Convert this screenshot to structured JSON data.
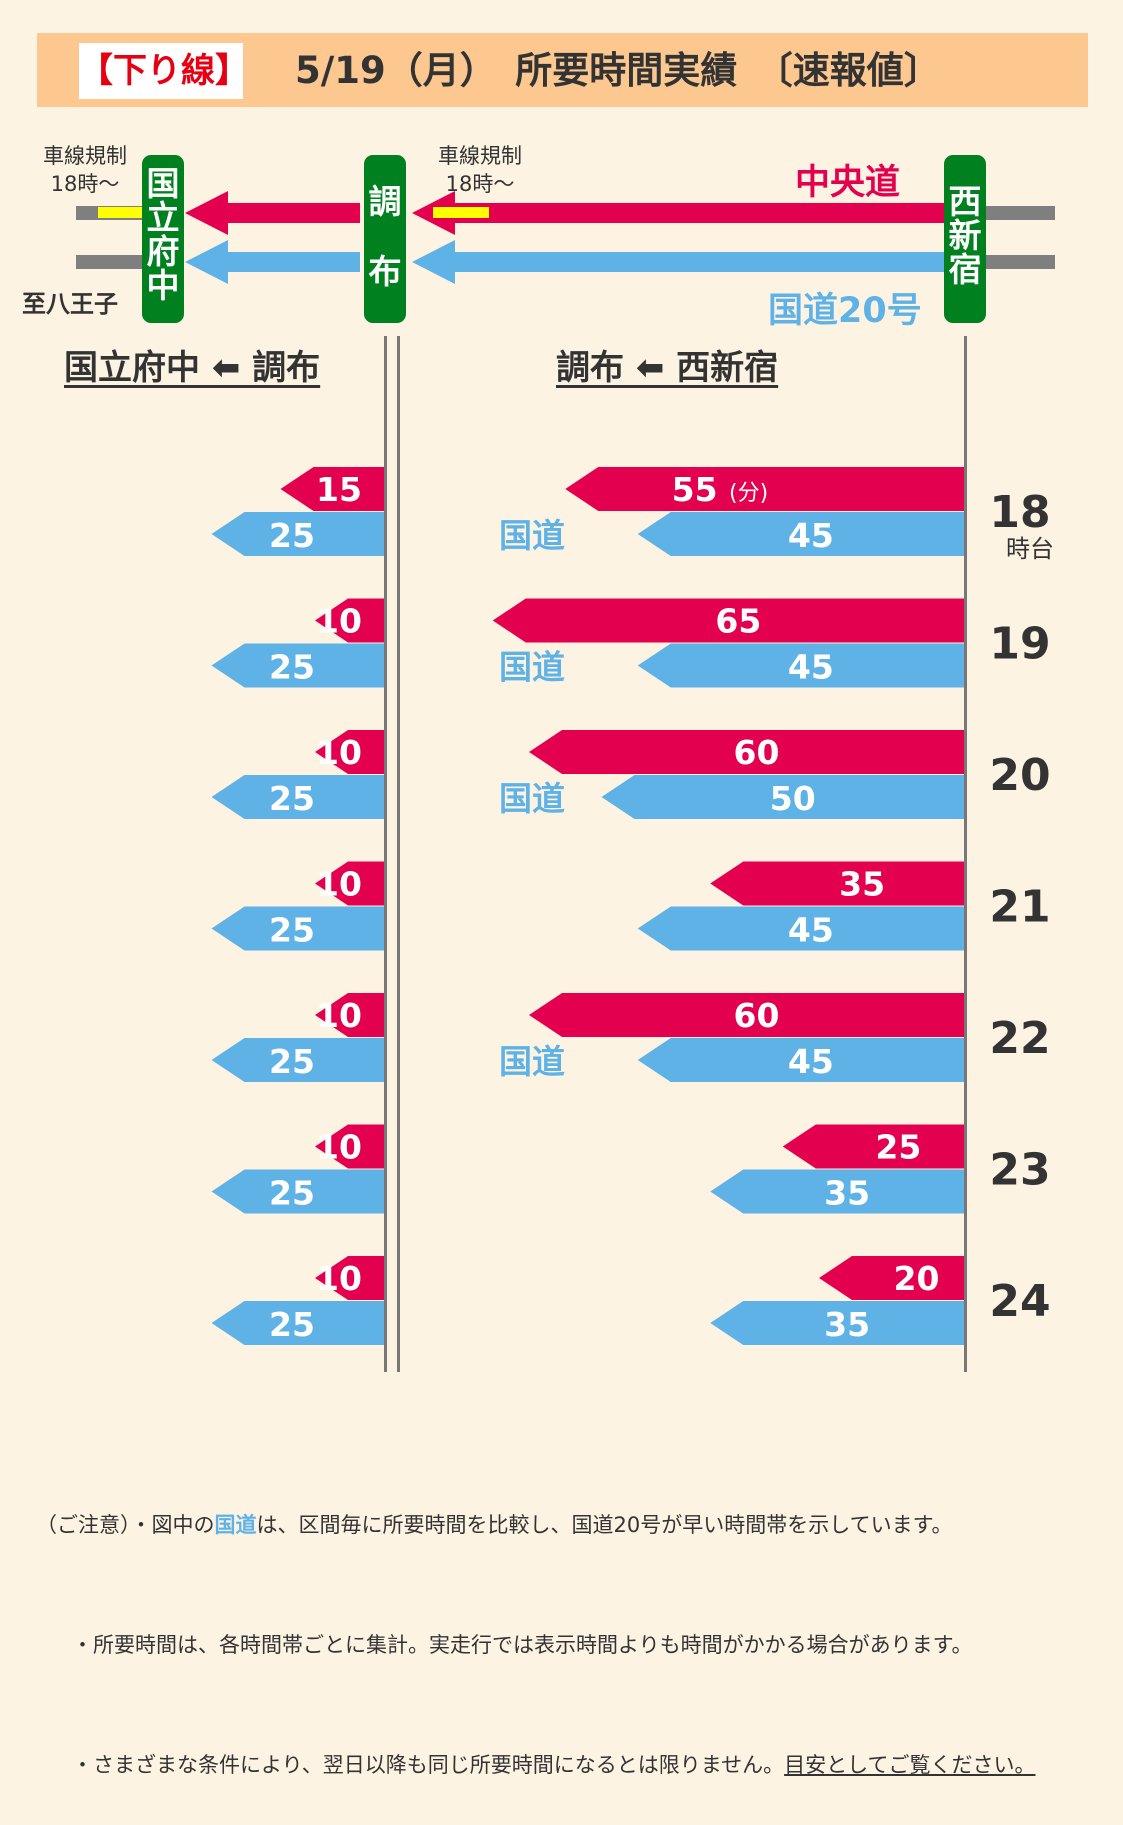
{
  "header": {
    "tag": "【下り線】",
    "title": "5/19（月）　所要時間実績　〔速報値〕"
  },
  "map": {
    "stations": {
      "kunitachi": [
        "国",
        "立",
        "府",
        "中"
      ],
      "chofu": [
        "調",
        "布"
      ],
      "nishishinjuku": [
        "西",
        "新",
        "宿"
      ]
    },
    "restriction_left": [
      "車線規制",
      "18時～"
    ],
    "restriction_right": [
      "車線規制",
      "18時～"
    ],
    "to_hachioji": "至八王子",
    "chuo_label": "中央道",
    "route20_label": "国道20号",
    "colors": {
      "chuo": "#e3004f",
      "route20": "#5fb2e6",
      "station": "#00801f",
      "restriction": "#ffff00"
    }
  },
  "sections": {
    "left_title": "国立府中 ⬅ 調布",
    "right_title": "調布 ⬅ 西新宿"
  },
  "chart_data": {
    "type": "bar",
    "unit_label": "(分)",
    "hour_suffix": "時台",
    "kokudo_label": "国道",
    "categories": [
      "18",
      "19",
      "20",
      "21",
      "22",
      "23",
      "24"
    ],
    "series": [
      {
        "name": "中央道",
        "section": "国立府中 ⬅ 調布",
        "values": [
          15,
          10,
          10,
          10,
          10,
          10,
          10
        ]
      },
      {
        "name": "国道20号",
        "section": "国立府中 ⬅ 調布",
        "values": [
          25,
          25,
          25,
          25,
          25,
          25,
          25
        ]
      },
      {
        "name": "中央道",
        "section": "調布 ⬅ 西新宿",
        "values": [
          55,
          65,
          60,
          35,
          60,
          25,
          20
        ]
      },
      {
        "name": "国道20号",
        "section": "調布 ⬅ 西新宿",
        "values": [
          45,
          45,
          50,
          45,
          45,
          35,
          35
        ]
      }
    ],
    "kokudo_faster": [
      true,
      true,
      true,
      false,
      true,
      false,
      false
    ]
  },
  "footer": {
    "line1_a": "（ご注意）・図中の",
    "line1_b": "国道",
    "line1_c": "は、区間毎に所要時間を比較し、国道20号が早い時間帯を示しています。",
    "line2": "・所要時間は、各時間帯ごとに集計。実走行では表示時間よりも時間がかかる場合があります。",
    "line3_a": "・さまざまな条件により、翌日以降も同じ所要時間になるとは限りません。",
    "line3_b": "目安としてご覧ください。"
  }
}
